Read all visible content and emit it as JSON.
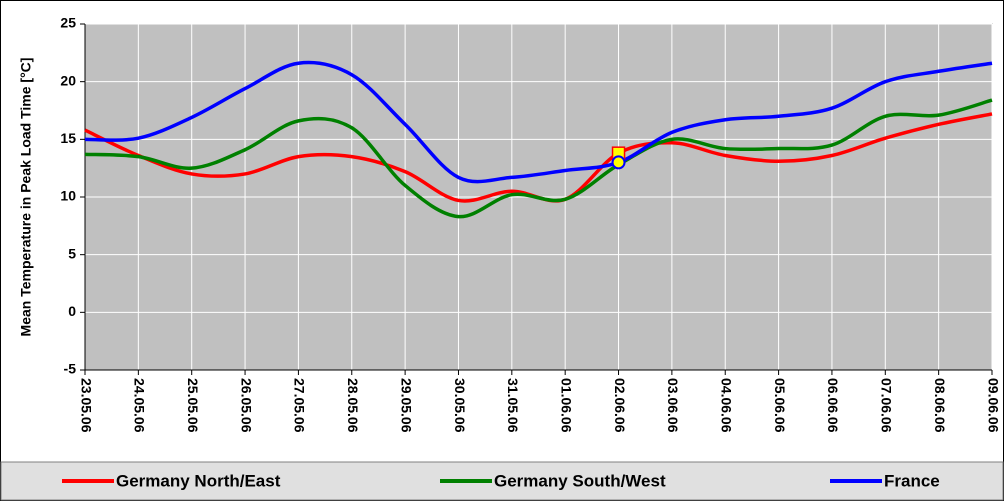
{
  "chart_data": {
    "type": "line",
    "y_label": "Mean Temperature in Peak Load Time [°C]",
    "categories": [
      "23.05.06",
      "24.05.06",
      "25.05.06",
      "26.05.06",
      "27.05.06",
      "28.05.06",
      "29.05.06",
      "30.05.06",
      "31.05.06",
      "01.06.06",
      "02.06.06",
      "03.06.06",
      "04.06.06",
      "05.06.06",
      "06.06.06",
      "07.06.06",
      "08.06.06",
      "09.06.06"
    ],
    "series": [
      {
        "name": "Germany North/East",
        "color": "#ff0000",
        "marker": "square",
        "values": [
          15.8,
          13.6,
          12.0,
          12.0,
          13.5,
          13.5,
          12.2,
          9.7,
          10.5,
          9.8,
          13.8,
          14.7,
          13.6,
          13.1,
          13.6,
          15.1,
          16.3,
          17.2
        ]
      },
      {
        "name": "Germany South/West",
        "color": "#008000",
        "values": [
          13.7,
          13.5,
          12.5,
          14.1,
          16.6,
          16.0,
          11.0,
          8.3,
          10.2,
          9.8,
          12.8,
          15.0,
          14.2,
          14.2,
          14.5,
          17.0,
          17.1,
          18.4
        ]
      },
      {
        "name": "France",
        "color": "#0000ff",
        "marker": "circle",
        "values": [
          15.0,
          15.1,
          16.9,
          19.4,
          21.6,
          20.6,
          16.3,
          11.7,
          11.7,
          12.3,
          13.0,
          15.6,
          16.7,
          17.0,
          17.7,
          20.0,
          20.9,
          21.6
        ]
      }
    ],
    "marker_at": "02.06.06",
    "ylim": [
      -5,
      25
    ],
    "yticks": [
      -5,
      0,
      5,
      10,
      15,
      20,
      25
    ],
    "grid": true,
    "legend": "bottom"
  }
}
